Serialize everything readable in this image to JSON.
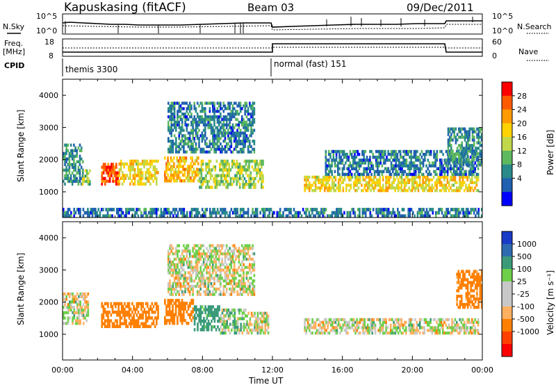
{
  "header": {
    "station": "Kapuskasing (fitACF)",
    "beam": "Beam 03",
    "date": "09/Dec/2011"
  },
  "noise_panel": {
    "left_label": "N.Sky",
    "right_label": "N.Search",
    "ticks_left": [
      "10^5",
      "10^0"
    ],
    "ticks_right": [
      "10^5",
      "10^0"
    ]
  },
  "freq_panel": {
    "left_label_line1": "Freq.",
    "left_label_line2": "[MHz]",
    "right_label": "Nave",
    "ticks_left": [
      "18",
      "8"
    ],
    "ticks_right": [
      "60",
      "0"
    ]
  },
  "cpid": {
    "label": "CPID",
    "segments": [
      {
        "name": "themis 3300",
        "start_hour": 0,
        "end_hour": 12
      },
      {
        "name": "normal (fast) 151",
        "start_hour": 12,
        "end_hour": 24
      }
    ]
  },
  "x_axis": {
    "label": "Time UT",
    "ticks": [
      "00:00",
      "04:00",
      "08:00",
      "12:00",
      "16:00",
      "20:00",
      "00:00"
    ]
  },
  "power_panel": {
    "ylabel": "Slant Range [km]",
    "yticks": [
      "4000",
      "3000",
      "2000",
      "1000"
    ],
    "colorbar_label": "Power [dB]",
    "colorbar_ticks": [
      "28",
      "24",
      "20",
      "16",
      "12",
      "8",
      "4"
    ],
    "colors": [
      "#ff0000",
      "#ff5a00",
      "#ff9a00",
      "#ffd200",
      "#c0d84a",
      "#5eb85e",
      "#2a8a8a",
      "#2060b0",
      "#0000ff"
    ]
  },
  "velocity_panel": {
    "ylabel": "Slant Range [km]",
    "yticks": [
      "4000",
      "3000",
      "2000",
      "1000"
    ],
    "colorbar_label": "Velocity [m s⁻¹]",
    "colorbar_ticks": [
      "1000",
      "500",
      "100",
      "25",
      "-25",
      "-100",
      "-500",
      "-1000"
    ],
    "colors": [
      "#1a3ac8",
      "#2e6ab0",
      "#3a9a7a",
      "#6ed04a",
      "#c8c8c8",
      "#c8c8c8",
      "#ffb060",
      "#ff8000",
      "#ff4000",
      "#ff0000"
    ]
  },
  "chart_data": [
    {
      "type": "heatmap",
      "title": "Kapuskasing (fitACF) Beam 03 09/Dec/2011",
      "quantity": "Power [dB]",
      "xlabel": "Time UT",
      "ylabel": "Slant Range [km]",
      "xlim": [
        0,
        24
      ],
      "ylim": [
        200,
        4500
      ],
      "clim": [
        0,
        30
      ],
      "echo_regions": [
        {
          "t_start": 0.0,
          "t_end": 1.2,
          "range_min": 1200,
          "range_max": 2500,
          "power_db": 8
        },
        {
          "t_start": 1.1,
          "t_end": 1.6,
          "range_min": 1200,
          "range_max": 1700,
          "power_db": 14
        },
        {
          "t_start": 2.2,
          "t_end": 3.2,
          "range_min": 1200,
          "range_max": 1900,
          "power_db": 26
        },
        {
          "t_start": 3.2,
          "t_end": 5.5,
          "range_min": 1200,
          "range_max": 2000,
          "power_db": 18
        },
        {
          "t_start": 5.8,
          "t_end": 7.8,
          "range_min": 1300,
          "range_max": 2100,
          "power_db": 20
        },
        {
          "t_start": 7.8,
          "t_end": 11.5,
          "range_min": 1100,
          "range_max": 2000,
          "power_db": 14
        },
        {
          "t_start": 6.0,
          "t_end": 11.0,
          "range_min": 2200,
          "range_max": 3800,
          "power_db": 6
        },
        {
          "t_start": 13.8,
          "t_end": 23.8,
          "range_min": 1000,
          "range_max": 1500,
          "power_db": 18
        },
        {
          "t_start": 15.0,
          "t_end": 23.8,
          "range_min": 1500,
          "range_max": 2300,
          "power_db": 6
        },
        {
          "t_start": 22.0,
          "t_end": 24.0,
          "range_min": 1800,
          "range_max": 3000,
          "power_db": 8
        },
        {
          "t_start": 0.0,
          "t_end": 24.0,
          "range_min": 200,
          "range_max": 500,
          "power_db": 6
        }
      ]
    },
    {
      "type": "heatmap",
      "title": "Kapuskasing (fitACF) Beam 03 09/Dec/2011",
      "quantity": "Velocity [m s-1]",
      "xlabel": "Time UT",
      "ylabel": "Slant Range [km]",
      "xlim": [
        0,
        24
      ],
      "ylim": [
        200,
        4500
      ],
      "clim": [
        -1000,
        1000
      ],
      "echo_regions": [
        {
          "t_start": 0.0,
          "t_end": 1.5,
          "range_min": 1300,
          "range_max": 2300,
          "velocity": 0
        },
        {
          "t_start": 2.2,
          "t_end": 5.5,
          "range_min": 1200,
          "range_max": 2000,
          "velocity": -300
        },
        {
          "t_start": 5.8,
          "t_end": 7.5,
          "range_min": 1300,
          "range_max": 2100,
          "velocity": -300
        },
        {
          "t_start": 7.5,
          "t_end": 9.0,
          "range_min": 1100,
          "range_max": 1900,
          "velocity": 200
        },
        {
          "t_start": 9.0,
          "t_end": 10.5,
          "range_min": 1000,
          "range_max": 1800,
          "velocity": 60
        },
        {
          "t_start": 10.5,
          "t_end": 11.8,
          "range_min": 1000,
          "range_max": 1700,
          "velocity": 0
        },
        {
          "t_start": 6.0,
          "t_end": 11.0,
          "range_min": 2200,
          "range_max": 3800,
          "velocity": 0
        },
        {
          "t_start": 13.8,
          "t_end": 23.8,
          "range_min": 1000,
          "range_max": 1500,
          "velocity": 0
        },
        {
          "t_start": 22.5,
          "t_end": 24.0,
          "range_min": 1800,
          "range_max": 3000,
          "velocity": -200
        }
      ]
    }
  ]
}
